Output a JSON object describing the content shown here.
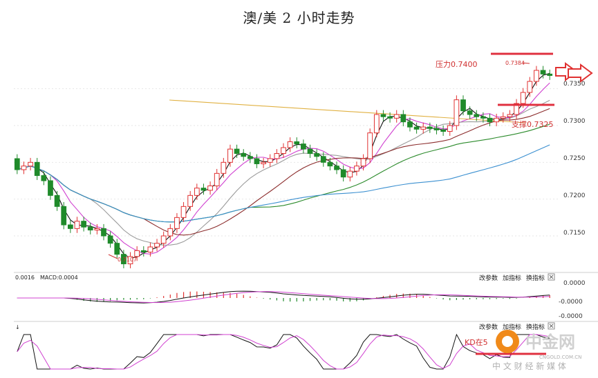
{
  "title": "澳/美 2 小时走势",
  "chart_data": {
    "type": "candlestick",
    "title": "澳/美 2 小时走势",
    "ylim": [
      0.7105,
      0.7405
    ],
    "y_ticks": [
      "0.7350",
      "0.7300",
      "0.7250",
      "0.7200",
      "0.7150"
    ],
    "candles": [
      [
        0.7255,
        0.724
      ],
      [
        0.724,
        0.7245
      ],
      [
        0.7245,
        0.725
      ],
      [
        0.725,
        0.7232
      ],
      [
        0.7232,
        0.7225
      ],
      [
        0.7225,
        0.7205
      ],
      [
        0.7205,
        0.719
      ],
      [
        0.719,
        0.7165
      ],
      [
        0.7165,
        0.716
      ],
      [
        0.716,
        0.717
      ],
      [
        0.717,
        0.7162
      ],
      [
        0.7162,
        0.7158
      ],
      [
        0.7158,
        0.716
      ],
      [
        0.716,
        0.715
      ],
      [
        0.715,
        0.714
      ],
      [
        0.714,
        0.7125
      ],
      [
        0.7125,
        0.7112
      ],
      [
        0.7112,
        0.7122
      ],
      [
        0.7122,
        0.713
      ],
      [
        0.713,
        0.7128
      ],
      [
        0.7128,
        0.7135
      ],
      [
        0.7135,
        0.714
      ],
      [
        0.714,
        0.715
      ],
      [
        0.715,
        0.716
      ],
      [
        0.716,
        0.7175
      ],
      [
        0.7175,
        0.719
      ],
      [
        0.719,
        0.7205
      ],
      [
        0.7205,
        0.7215
      ],
      [
        0.7215,
        0.7212
      ],
      [
        0.7212,
        0.7218
      ],
      [
        0.7218,
        0.7235
      ],
      [
        0.7235,
        0.725
      ],
      [
        0.725,
        0.7268
      ],
      [
        0.7268,
        0.7262
      ],
      [
        0.7262,
        0.7258
      ],
      [
        0.7258,
        0.7255
      ],
      [
        0.7255,
        0.7248
      ],
      [
        0.7248,
        0.725
      ],
      [
        0.725,
        0.7255
      ],
      [
        0.7255,
        0.7262
      ],
      [
        0.7262,
        0.727
      ],
      [
        0.727,
        0.7278
      ],
      [
        0.7278,
        0.7275
      ],
      [
        0.7275,
        0.7268
      ],
      [
        0.7268,
        0.7262
      ],
      [
        0.7262,
        0.7258
      ],
      [
        0.7258,
        0.725
      ],
      [
        0.725,
        0.7245
      ],
      [
        0.7245,
        0.724
      ],
      [
        0.724,
        0.723
      ],
      [
        0.723,
        0.7238
      ],
      [
        0.7238,
        0.7245
      ],
      [
        0.7245,
        0.7255
      ],
      [
        0.7255,
        0.729
      ],
      [
        0.729,
        0.7315
      ],
      [
        0.7315,
        0.7312
      ],
      [
        0.7312,
        0.731
      ],
      [
        0.731,
        0.7315
      ],
      [
        0.7315,
        0.7305
      ],
      [
        0.7305,
        0.7298
      ],
      [
        0.7298,
        0.7295
      ],
      [
        0.7295,
        0.7298
      ],
      [
        0.7298,
        0.7296
      ],
      [
        0.7296,
        0.7294
      ],
      [
        0.7294,
        0.7292
      ],
      [
        0.7292,
        0.73
      ],
      [
        0.73,
        0.7335
      ],
      [
        0.7335,
        0.732
      ],
      [
        0.732,
        0.7315
      ],
      [
        0.7315,
        0.7312
      ],
      [
        0.7312,
        0.731
      ],
      [
        0.731,
        0.7305
      ],
      [
        0.7305,
        0.731
      ],
      [
        0.731,
        0.7312
      ],
      [
        0.7312,
        0.7315
      ],
      [
        0.7315,
        0.733
      ],
      [
        0.733,
        0.7345
      ],
      [
        0.7345,
        0.736
      ],
      [
        0.736,
        0.7375
      ],
      [
        0.7375,
        0.737
      ],
      [
        0.737,
        0.7368
      ]
    ],
    "annotations": {
      "resistance": "压力0.7400",
      "support": "支撑0.7325",
      "high": "0.7384",
      "low": "0.7107"
    },
    "resistance_level": 0.74,
    "support_level": 0.7325,
    "macd_label": "0.0016",
    "macd_label2": "MACD:0.0004",
    "macd_ticks": [
      "0.0000",
      "-0.0000",
      "-0.0000"
    ],
    "kd_label": "KD在5",
    "panel_buttons": [
      "改参数",
      "加指标",
      "换指标"
    ]
  },
  "colors": {
    "up": "#e03030",
    "down": "#1f8a2a",
    "ma_black": "#111111",
    "ma_magenta": "#d040d0",
    "ma_gray": "#9a9a9a",
    "ma_brown": "#8b2b2b",
    "ma_green": "#2a8a2a",
    "ma_blue": "#3a8fd0",
    "ma_orange": "#e0b040",
    "level_red": "#e0303f"
  },
  "watermark": {
    "main": "中金网",
    "domain": "CNGOLD.COM.CN",
    "slogan": "中 文 财 经 新 媒 体"
  }
}
